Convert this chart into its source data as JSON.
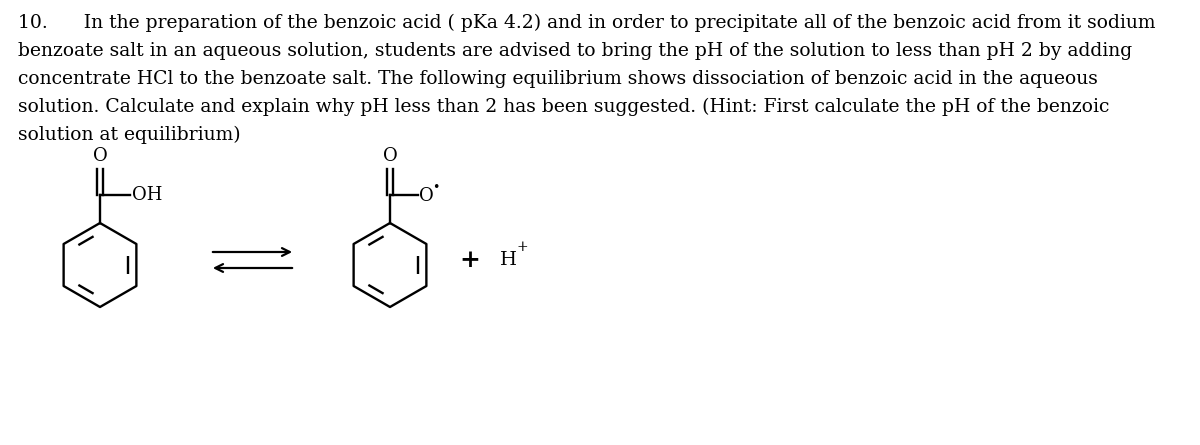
{
  "question_number": "10.",
  "line1": "In the preparation of the benzoic acid ( pKa 4.2) and in order to precipitate all of the benzoic acid from it sodium",
  "line2": "benzoate salt in an aqueous solution, students are advised to bring the pH of the solution to less than pH 2 by adding",
  "line3": "concentrate HCl to the benzoate salt. The following equilibrium shows dissociation of benzoic acid in the aqueous",
  "line4": "solution. Calculate and explain why pH less than 2 has been suggested. (Hint: First calculate the pH of the benzoic",
  "line5": "solution at equilibrium)",
  "bg_color": "#ffffff",
  "text_color": "#000000",
  "font_size": 13.5,
  "fig_width": 12.0,
  "fig_height": 4.45,
  "dpi": 100
}
